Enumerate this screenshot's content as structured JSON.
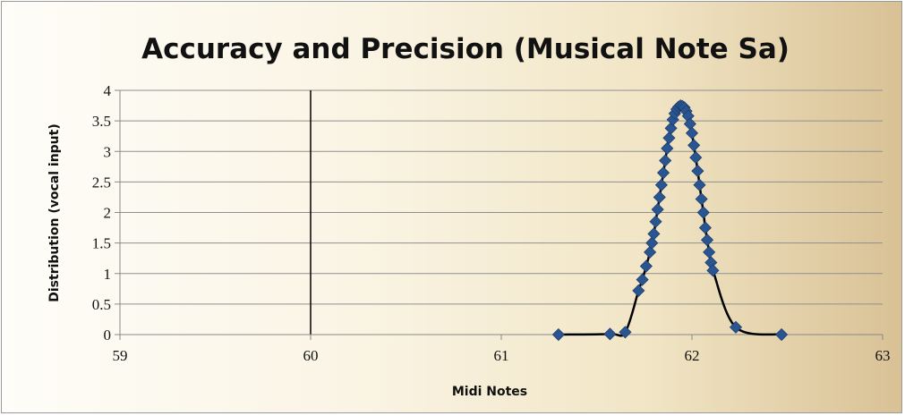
{
  "chart_data": {
    "type": "scatter",
    "title": "Accuracy and Precision (Musical Note Sa)",
    "xlabel": "Midi Notes",
    "ylabel": "Distribution (vocal input)",
    "xlim": [
      59,
      63
    ],
    "ylim": [
      0,
      4
    ],
    "xticks": [
      "59",
      "60",
      "61",
      "62",
      "63"
    ],
    "yticks": [
      "0",
      "0.5",
      "1",
      "1.5",
      "2",
      "2.5",
      "3",
      "3.5",
      "4"
    ],
    "grid": "horizontal",
    "legend": "none",
    "reference_line_x": 60,
    "marker_color": "#2a5590",
    "line_color": "#000000",
    "series": [
      {
        "marker": "diamond",
        "x": [
          61.3,
          61.57,
          61.65,
          61.72,
          61.74,
          61.76,
          61.78,
          61.79,
          61.8,
          61.81,
          61.82,
          61.83,
          61.84,
          61.85,
          61.86,
          61.87,
          61.88,
          61.89,
          61.9,
          61.91,
          61.92,
          61.93,
          61.94,
          61.95,
          61.96,
          61.97,
          61.98,
          61.99,
          62.0,
          62.01,
          62.02,
          62.03,
          62.04,
          62.05,
          62.06,
          62.07,
          62.08,
          62.09,
          62.1,
          62.11,
          62.23,
          62.47
        ],
        "y": [
          0.0,
          0.01,
          0.04,
          0.72,
          0.9,
          1.12,
          1.35,
          1.5,
          1.65,
          1.85,
          2.05,
          2.25,
          2.45,
          2.65,
          2.85,
          3.05,
          3.22,
          3.38,
          3.52,
          3.62,
          3.69,
          3.73,
          3.75,
          3.74,
          3.72,
          3.66,
          3.58,
          3.45,
          3.3,
          3.1,
          2.9,
          2.68,
          2.45,
          2.22,
          2.0,
          1.75,
          1.55,
          1.35,
          1.18,
          1.05,
          0.12,
          0.0
        ]
      }
    ]
  }
}
